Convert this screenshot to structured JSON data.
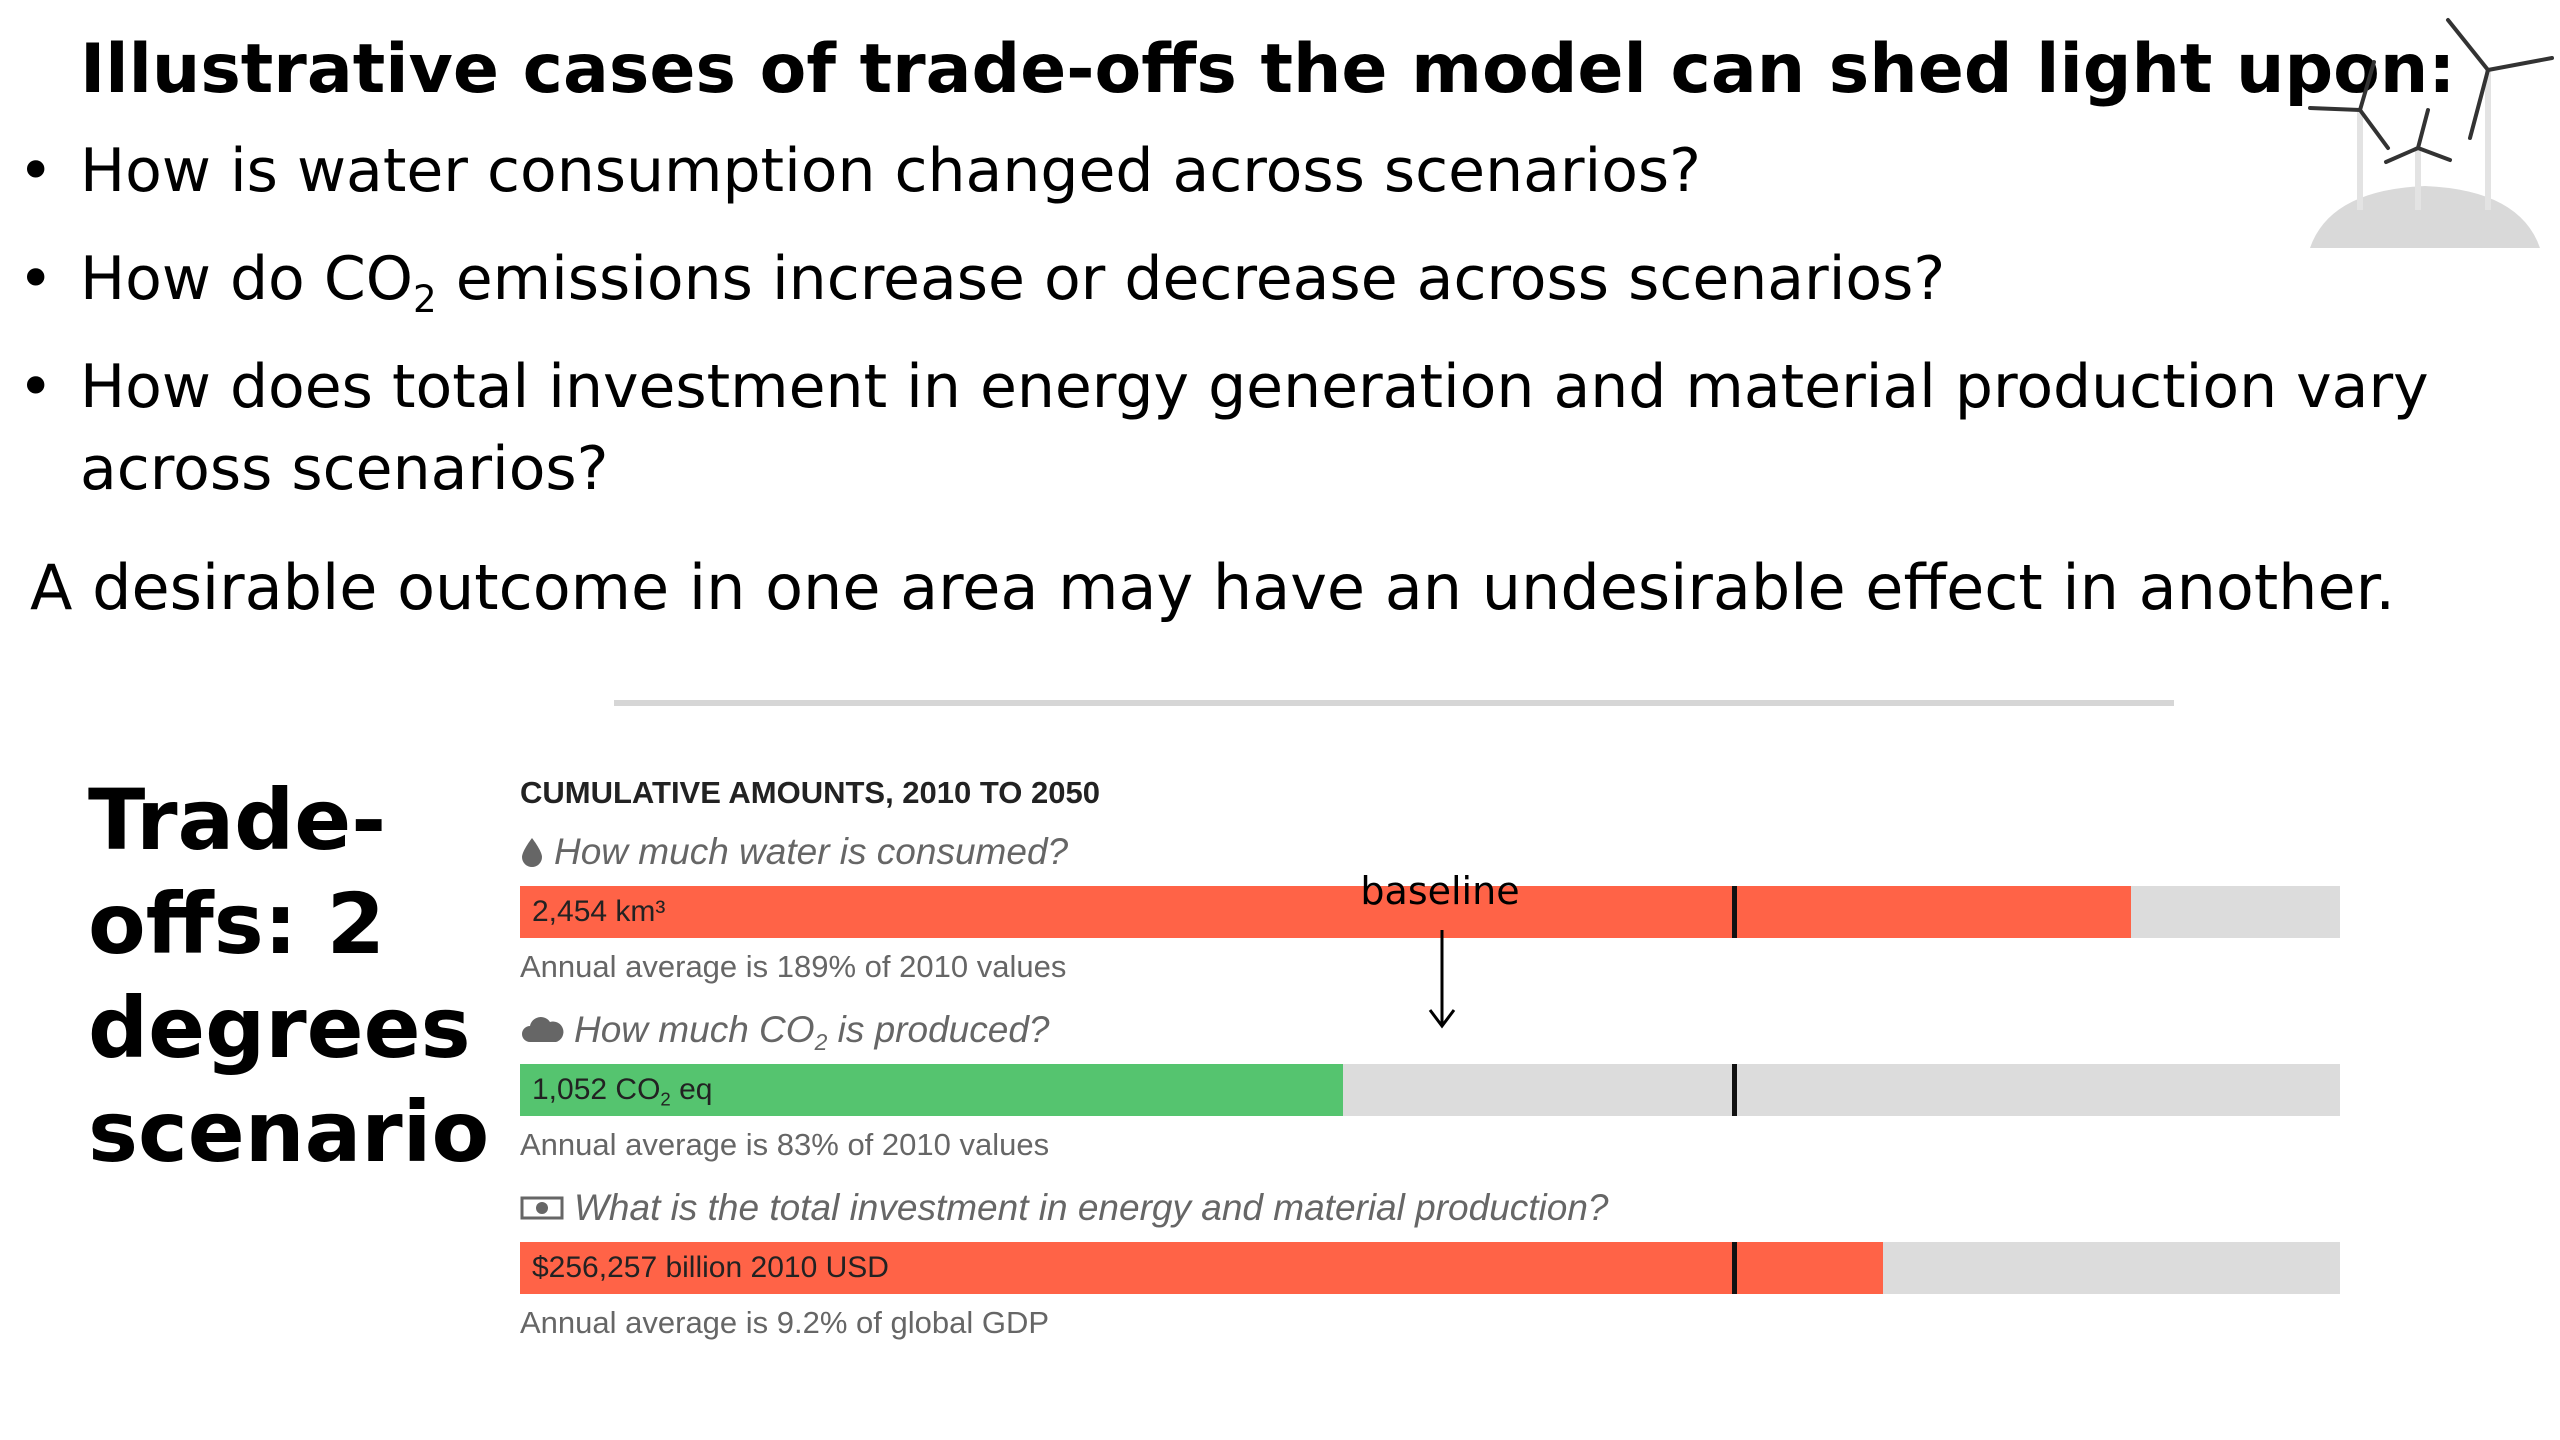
{
  "slide": {
    "title": "Illustrative cases of trade-offs the model can shed light upon:",
    "bullets": [
      {
        "text": "How is water consumption changed across scenarios?"
      },
      {
        "pre": "How do CO",
        "sub": "2",
        "post": " emissions increase or decrease across scenarios?"
      },
      {
        "text": "How does total investment in energy generation and material production vary across scenarios?"
      }
    ],
    "statement": "A desirable outcome in one area may have an undesirable effect in another.",
    "side_label_lines": [
      "Trade-",
      "offs: 2",
      "degrees",
      "scenario"
    ],
    "annotation": {
      "label": "baseline"
    },
    "icon": "wind-turbines-icon",
    "bullet_glyph": "•"
  },
  "panel": {
    "heading": "CUMULATIVE AMOUNTS, 2010 TO 2050",
    "colors": {
      "increase": "#ff6347",
      "decrease": "#55c46f",
      "track": "#dcdcdc",
      "baseline_marker": "#111111"
    },
    "metrics": [
      {
        "icon": "water-drop-icon",
        "question": "How much water is consumed?",
        "value_label": "2,454 km³",
        "note": "Annual average is 189% of 2010 values",
        "fill_fraction": 0.885,
        "baseline_fraction": 0.667,
        "color": "#ff6347"
      },
      {
        "icon": "cloud-icon",
        "question_pre": "How much CO",
        "question_sub": "2",
        "question_post": " is produced?",
        "value_pre": "1,052 CO",
        "value_sub": "2",
        "value_post": " eq",
        "note": "Annual average is 83% of 2010 values",
        "fill_fraction": 0.452,
        "baseline_fraction": 0.667,
        "color": "#55c46f"
      },
      {
        "icon": "money-bill-icon",
        "question": "What is the total investment in energy and material production?",
        "value_label": "$256,257 billion 2010 USD",
        "note": "Annual average is 9.2% of global GDP",
        "fill_fraction": 0.749,
        "baseline_fraction": 0.667,
        "color": "#ff6347"
      }
    ]
  }
}
